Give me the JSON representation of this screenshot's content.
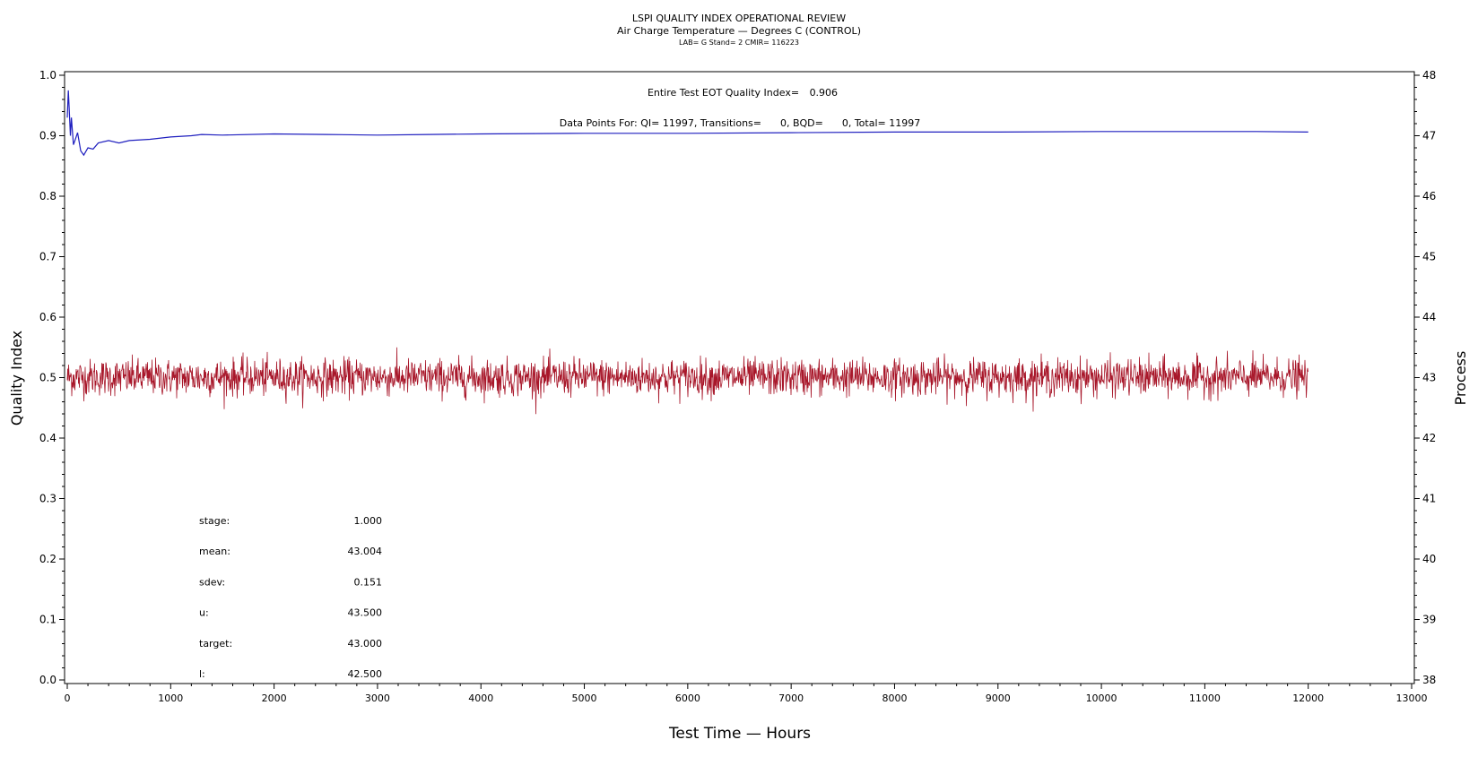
{
  "header": {
    "title": "LSPI QUALITY INDEX OPERATIONAL REVIEW",
    "subtitle": "Air Charge Temperature — Degrees C (CONTROL)",
    "subsubtitle": "LAB= G Stand= 2 CMIR= 116223"
  },
  "annotations": {
    "quality_line_prefix": "Entire Test EOT Quality Index=",
    "quality_value": "0.906",
    "datapoints_line": "Data Points For: QI= 11997, Transitions=      0, BQD=      0, Total= 11997"
  },
  "stats": [
    {
      "label": "stage:",
      "value": "1.000"
    },
    {
      "label": "mean:",
      "value": "43.004"
    },
    {
      "label": "sdev:",
      "value": "0.151"
    },
    {
      "label": "u:",
      "value": "43.500"
    },
    {
      "label": "target:",
      "value": "43.000"
    },
    {
      "label": "l:",
      "value": "42.500"
    }
  ],
  "colors": {
    "quality": "#1f1fbf",
    "process": "#a8172a",
    "axis": "#000000"
  },
  "chart_data": {
    "type": "line",
    "xlabel": "Test Time — Hours",
    "ylabel": "Quality Index",
    "y2label": "Process",
    "xlim": [
      0,
      13000
    ],
    "ylim": [
      0.0,
      1.0
    ],
    "y2lim": [
      38,
      48
    ],
    "xticks": [
      0,
      1000,
      2000,
      3000,
      4000,
      5000,
      6000,
      7000,
      8000,
      9000,
      10000,
      11000,
      12000,
      13000
    ],
    "yticks": [
      "0.0",
      "0.1",
      "0.2",
      "0.3",
      "0.4",
      "0.5",
      "0.6",
      "0.7",
      "0.8",
      "0.9",
      "1.0"
    ],
    "y2ticks": [
      38,
      39,
      40,
      41,
      42,
      43,
      44,
      45,
      46,
      47,
      48
    ],
    "grid": false,
    "series": [
      {
        "axis": "left",
        "x": [
          0,
          10,
          20,
          30,
          40,
          60,
          80,
          100,
          130,
          160,
          200,
          250,
          300,
          400,
          500,
          600,
          800,
          1000,
          1200,
          1300,
          1500,
          2000,
          2500,
          3000,
          3500,
          4000,
          5000,
          6000,
          7000,
          8000,
          9000,
          10000,
          11000,
          11500,
          12000
        ],
        "y": [
          0.93,
          0.975,
          0.94,
          0.9,
          0.93,
          0.885,
          0.895,
          0.905,
          0.875,
          0.868,
          0.88,
          0.878,
          0.888,
          0.892,
          0.888,
          0.892,
          0.894,
          0.898,
          0.9,
          0.902,
          0.901,
          0.903,
          0.902,
          0.901,
          0.902,
          0.903,
          0.904,
          0.904,
          0.905,
          0.906,
          0.906,
          0.907,
          0.907,
          0.907,
          0.906
        ]
      },
      {
        "axis": "right",
        "x_range": [
          0,
          12000
        ],
        "count": 11997,
        "mean": 43.004,
        "sdev": 0.151
      }
    ]
  }
}
